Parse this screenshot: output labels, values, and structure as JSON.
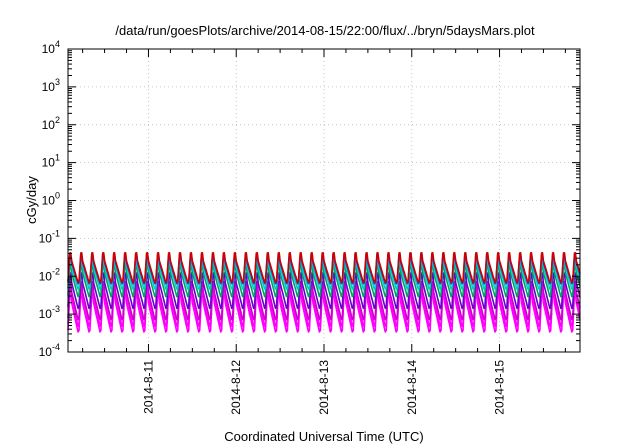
{
  "chart_data": {
    "type": "line",
    "title": "/data/run/goesPlots/archive/2014-08-15/22:00/flux/../bryn/5daysMars.plot",
    "xlabel": "Coordinated Universal Time (UTC)",
    "ylabel": "cGy/day",
    "yscale": "log",
    "ylim": [
      0.0001,
      10000
    ],
    "xlim": [
      "2014-08-10T02:00",
      "2014-08-15T22:00"
    ],
    "x_ticks": [
      "2014-8-11",
      "2014-8-12",
      "2014-8-13",
      "2014-8-14",
      "2014-8-15"
    ],
    "y_ticks": [
      {
        "value": 0.0001,
        "base": "10",
        "exp": "-4"
      },
      {
        "value": 0.001,
        "base": "10",
        "exp": "-3"
      },
      {
        "value": 0.01,
        "base": "10",
        "exp": "-2"
      },
      {
        "value": 0.1,
        "base": "10",
        "exp": "-1"
      },
      {
        "value": 1,
        "base": "10",
        "exp": "0"
      },
      {
        "value": 10,
        "base": "10",
        "exp": "1"
      },
      {
        "value": 100,
        "base": "10",
        "exp": "2"
      },
      {
        "value": 1000,
        "base": "10",
        "exp": "3"
      },
      {
        "value": 10000,
        "base": "10",
        "exp": "4"
      }
    ],
    "grid": true,
    "legend": "none",
    "periodic_pattern": {
      "period_hours": 3,
      "peak_offset_hours": 0.6
    },
    "series": [
      {
        "color": "#ff00ff",
        "min": 0.00028,
        "max": 0.006
      },
      {
        "color": "#ff00ff",
        "min": 0.0004,
        "max": 0.008
      },
      {
        "color": "#cc00cc",
        "min": 0.0006,
        "max": 0.011
      },
      {
        "color": "#6600cc",
        "min": 0.0012,
        "max": 0.018
      },
      {
        "color": "#00a060",
        "min": 0.0025,
        "max": 0.03
      },
      {
        "color": "#00cccc",
        "min": 0.004,
        "max": 0.04
      },
      {
        "color": "#2f3fe0",
        "min": 0.0055,
        "max": 0.05
      },
      {
        "color": "#cc0000",
        "min": 0.006,
        "max": 0.058
      }
    ]
  }
}
